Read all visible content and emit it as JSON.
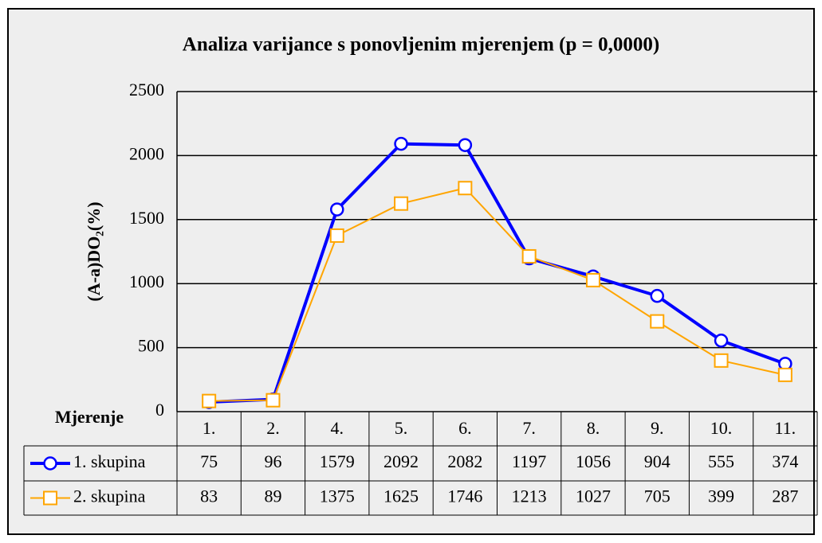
{
  "chart_data": {
    "type": "line",
    "title": "Analiza varijance s ponovljenim mjerenjem (p = 0,0000)",
    "y_label": "(A-a)DO₂(%)",
    "x_label": "Mjerenje",
    "categories": [
      "1.",
      "2.",
      "4.",
      "5.",
      "6.",
      "7.",
      "8.",
      "9.",
      "10.",
      "11."
    ],
    "series": [
      {
        "name": "1. skupina",
        "color": "#0000ff",
        "marker": "circle",
        "values": [
          75,
          96,
          1579,
          2092,
          2082,
          1197,
          1056,
          904,
          555,
          374
        ]
      },
      {
        "name": "2. skupina",
        "color": "#ffa500",
        "marker": "square",
        "values": [
          83,
          89,
          1375,
          1625,
          1746,
          1213,
          1027,
          705,
          399,
          287
        ]
      }
    ],
    "ylim": [
      0,
      2500
    ],
    "yticks": [
      0,
      500,
      1000,
      1500,
      2000,
      2500
    ],
    "grid": true
  }
}
